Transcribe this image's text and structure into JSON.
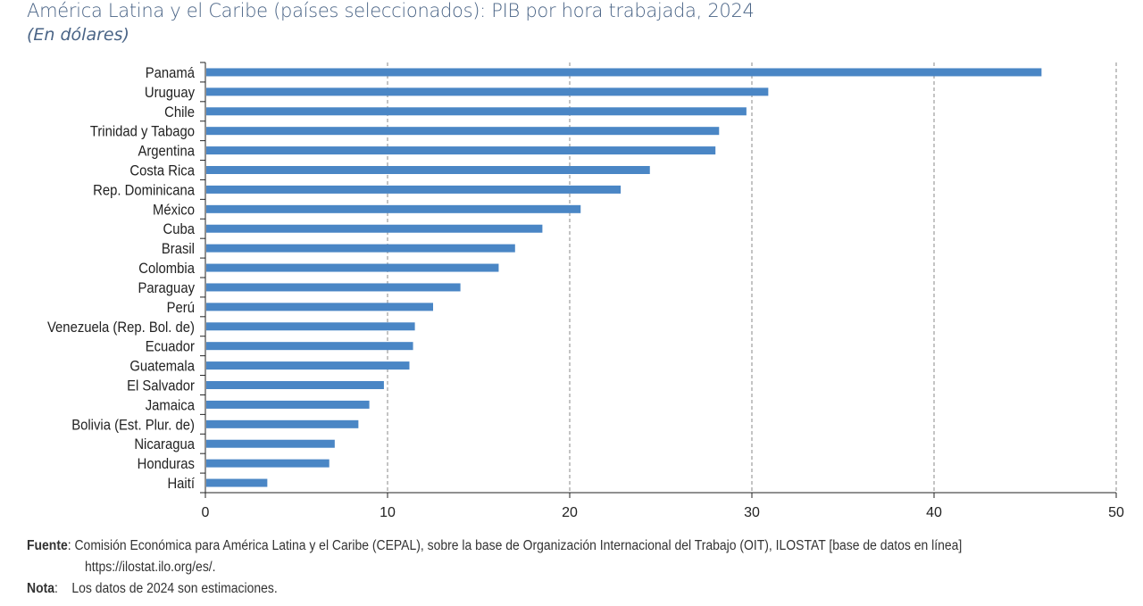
{
  "chart_data": {
    "type": "bar",
    "orientation": "horizontal",
    "title": "América Latina y el Caribe (países seleccionados): PIB por hora trabajada, 2024",
    "subtitle": "(En dólares)",
    "categories": [
      "Panamá",
      "Uruguay",
      "Chile",
      "Trinidad y Tabago",
      "Argentina",
      "Costa Rica",
      "Rep. Dominicana",
      "México",
      "Cuba",
      "Brasil",
      "Colombia",
      "Paraguay",
      "Perú",
      "Venezuela (Rep. Bol. de)",
      "Ecuador",
      "Guatemala",
      "El Salvador",
      "Jamaica",
      "Bolivia (Est. Plur. de)",
      "Nicaragua",
      "Honduras",
      "Haití"
    ],
    "values": [
      45.9,
      30.9,
      29.7,
      28.2,
      28.0,
      24.4,
      22.8,
      20.6,
      18.5,
      17.0,
      16.1,
      14.0,
      12.5,
      11.5,
      11.4,
      11.2,
      9.8,
      9.0,
      8.4,
      7.1,
      6.8,
      3.4
    ],
    "xlim": [
      0,
      50
    ],
    "xticks": [
      "0",
      "10",
      "20",
      "30",
      "40",
      "50"
    ],
    "grid": "vertical dashed",
    "bar_color": "#4a86c5"
  },
  "footnotes": {
    "source_label": "Fuente",
    "source_text": ": Comisión Económica para América Latina y el Caribe (CEPAL), sobre la base de Organización Internacional del Trabajo (OIT), ILOSTAT [base de datos en línea]",
    "source_text2": "https://ilostat.ilo.org/es/.",
    "note_label": "Nota",
    "note_text": ":    Los datos de 2024 son estimaciones."
  }
}
